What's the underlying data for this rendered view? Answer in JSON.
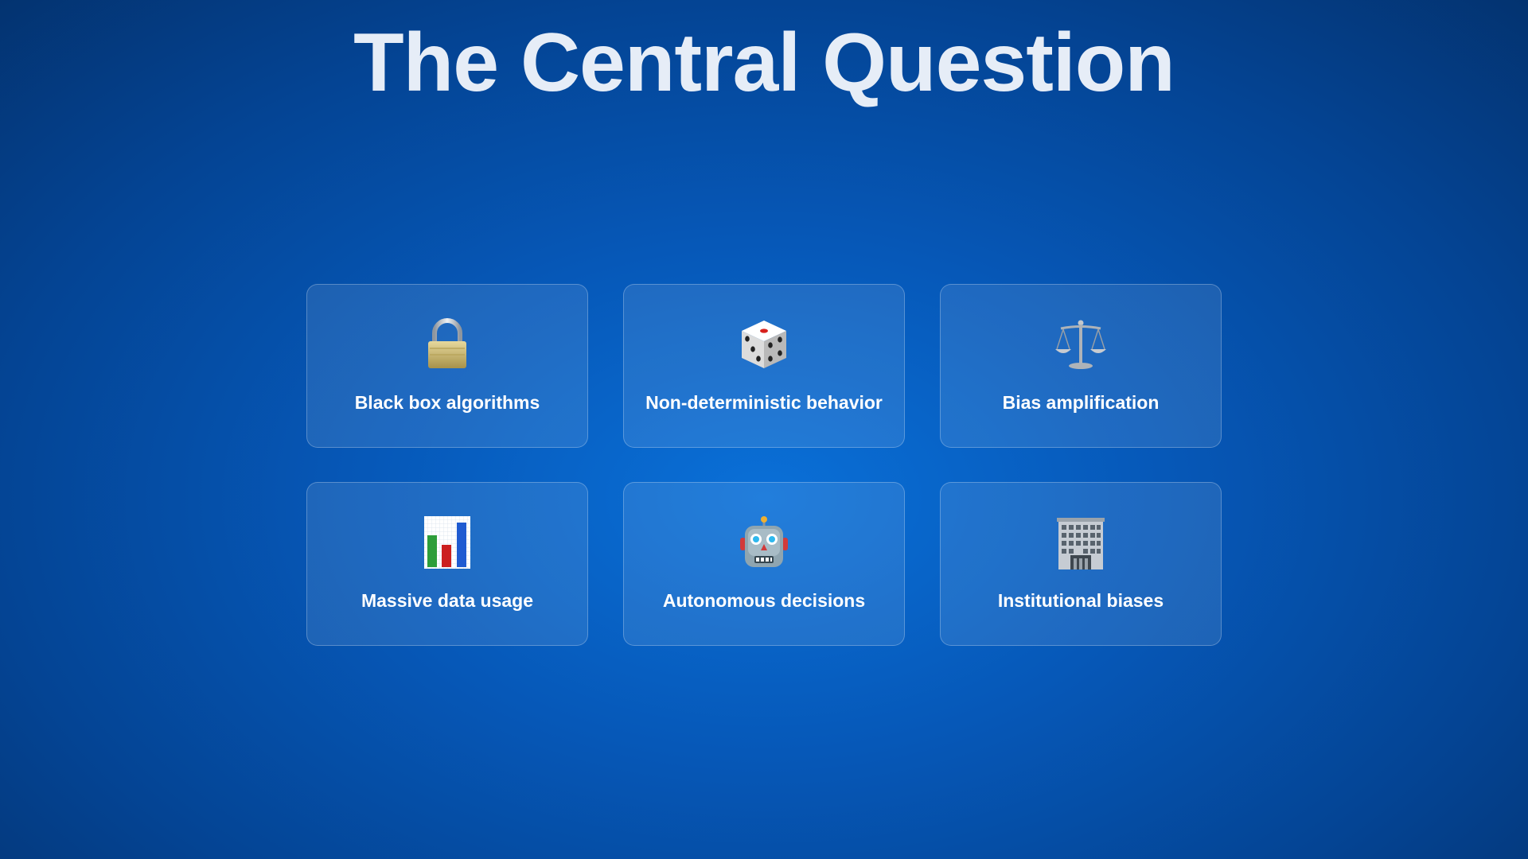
{
  "slide": {
    "title": "The Central Question"
  },
  "cards": [
    {
      "icon": "lock-icon",
      "label": "Black box algorithms"
    },
    {
      "icon": "dice-icon",
      "label": "Non-deterministic behavior"
    },
    {
      "icon": "scales-icon",
      "label": "Bias amplification"
    },
    {
      "icon": "bar-chart-icon",
      "label": "Massive data usage"
    },
    {
      "icon": "robot-icon",
      "label": "Autonomous decisions"
    },
    {
      "icon": "office-building-icon",
      "label": "Institutional biases"
    }
  ],
  "colors": {
    "background_center": "#0a70d8",
    "background_edge": "#03306a",
    "title": "#e6edf7",
    "card_label": "#ffffff"
  }
}
